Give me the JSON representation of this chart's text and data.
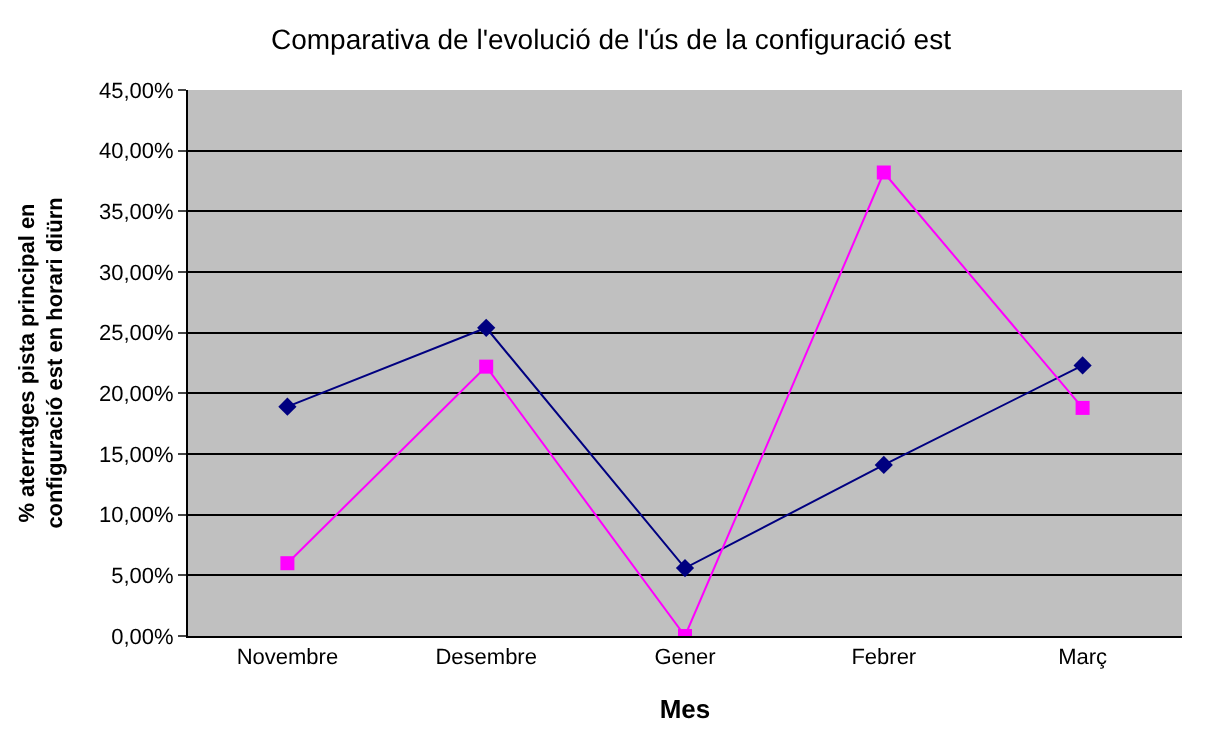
{
  "chart_data": {
    "type": "line",
    "title": "Comparativa de l'evolució de l'ús de la configuració est",
    "xlabel": "Mes",
    "ylabel": "% aterratges pista principal en configuració est en horari diürn",
    "categories": [
      "Novembre",
      "Desembre",
      "Gener",
      "Febrer",
      "Març"
    ],
    "series": [
      {
        "color": "#000080",
        "marker": "diamond",
        "values": [
          18.9,
          25.4,
          5.6,
          14.1,
          22.3
        ]
      },
      {
        "color": "#ff00ff",
        "marker": "square",
        "values": [
          6.0,
          22.2,
          0.0,
          38.2,
          18.8
        ]
      }
    ],
    "ylim": [
      0,
      45
    ],
    "yticks": [
      {
        "value": 0,
        "label": "0,00%"
      },
      {
        "value": 5,
        "label": "5,00%"
      },
      {
        "value": 10,
        "label": "10,00%"
      },
      {
        "value": 15,
        "label": "15,00%"
      },
      {
        "value": 20,
        "label": "20,00%"
      },
      {
        "value": 25,
        "label": "25,00%"
      },
      {
        "value": 30,
        "label": "30,00%"
      },
      {
        "value": 35,
        "label": "35,00%"
      },
      {
        "value": 40,
        "label": "40,00%"
      },
      {
        "value": 45,
        "label": "45,00%"
      }
    ],
    "grid": "y",
    "line_style": "solid"
  }
}
